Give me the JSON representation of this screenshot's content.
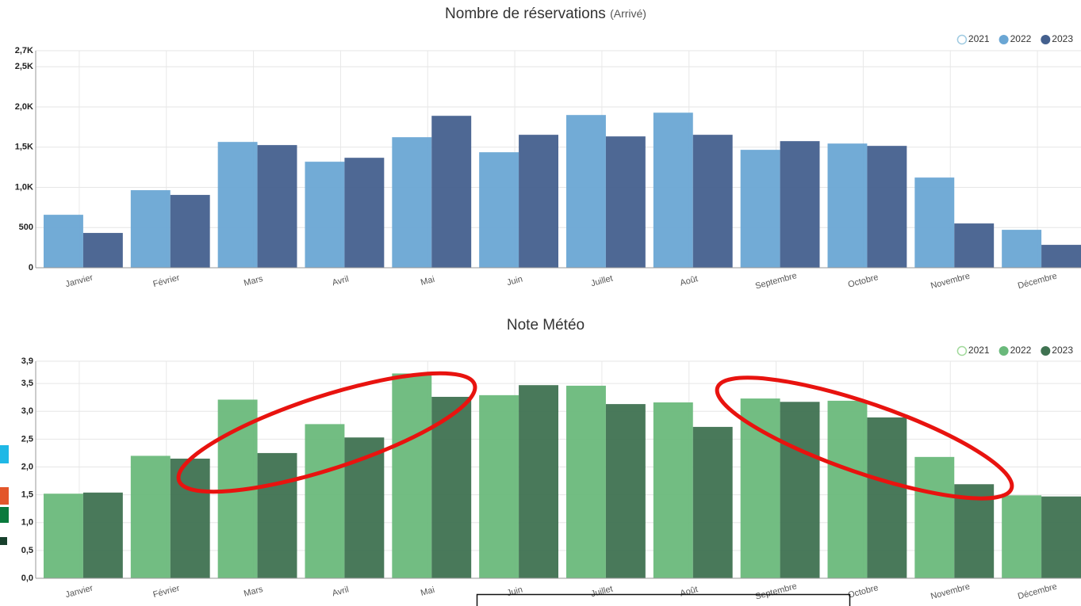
{
  "chart_data": [
    {
      "type": "bar",
      "title": "Nombre de réservations",
      "subtitle": "(Arrivé)",
      "categories": [
        "Janvier",
        "Février",
        "Mars",
        "Avril",
        "Mai",
        "Juin",
        "Juillet",
        "Août",
        "Septembre",
        "Octobre",
        "Novembre",
        "Décembre"
      ],
      "series": [
        {
          "name": "2021",
          "color": "#9ecae1",
          "values": [
            null,
            null,
            null,
            null,
            null,
            null,
            null,
            null,
            null,
            null,
            null,
            null
          ]
        },
        {
          "name": "2022",
          "color": "#6aa6d4",
          "values": [
            659,
            965,
            1565,
            1319,
            1624,
            1437,
            1900,
            1929,
            1467,
            1545,
            1122,
            472
          ]
        },
        {
          "name": "2023",
          "color": "#44608e",
          "values": [
            433,
            906,
            1526,
            1368,
            1890,
            1654,
            1634,
            1654,
            1575,
            1516,
            551,
            285
          ]
        }
      ],
      "ylim": [
        0,
        2700
      ],
      "yticks": [
        0,
        500,
        {
          "value": 1000,
          "label": "1,0K"
        },
        {
          "value": 1500,
          "label": "1,5K"
        },
        {
          "value": 2000,
          "label": "2,0K"
        },
        {
          "value": 2500,
          "label": "2,5K"
        },
        {
          "value": 2700,
          "label": "2,7K"
        }
      ],
      "grid": true,
      "legend": "top-right"
    },
    {
      "type": "bar",
      "title": "Note Météo",
      "categories": [
        "Janvier",
        "Février",
        "Mars",
        "Avril",
        "Mai",
        "Juin",
        "Juillet",
        "Août",
        "Septembre",
        "Octobre",
        "Novembre",
        "Décembre"
      ],
      "series": [
        {
          "name": "2021",
          "color": "#a1d99b",
          "values": [
            null,
            null,
            null,
            null,
            null,
            null,
            null,
            null,
            null,
            null,
            null,
            null
          ]
        },
        {
          "name": "2022",
          "color": "#6ab97b",
          "values": [
            1.52,
            2.2,
            3.21,
            2.77,
            3.68,
            3.29,
            3.46,
            3.16,
            3.23,
            3.19,
            2.18,
            1.49
          ]
        },
        {
          "name": "2023",
          "color": "#3f7251",
          "values": [
            1.54,
            2.15,
            2.25,
            2.53,
            3.26,
            3.47,
            3.13,
            2.72,
            3.17,
            2.89,
            1.69,
            1.47
          ]
        }
      ],
      "ylim": [
        0,
        3.9
      ],
      "yticks": [
        {
          "value": 0,
          "label": "0,0"
        },
        {
          "value": 0.5,
          "label": "0,5"
        },
        {
          "value": 1,
          "label": "1,0"
        },
        {
          "value": 1.5,
          "label": "1,5"
        },
        {
          "value": 2,
          "label": "2,0"
        },
        {
          "value": 2.5,
          "label": "2,5"
        },
        {
          "value": 3,
          "label": "3,0"
        },
        {
          "value": 3.5,
          "label": "3,5"
        },
        {
          "value": 3.9,
          "label": "3,9"
        }
      ],
      "grid": true,
      "legend": "top-right"
    }
  ]
}
